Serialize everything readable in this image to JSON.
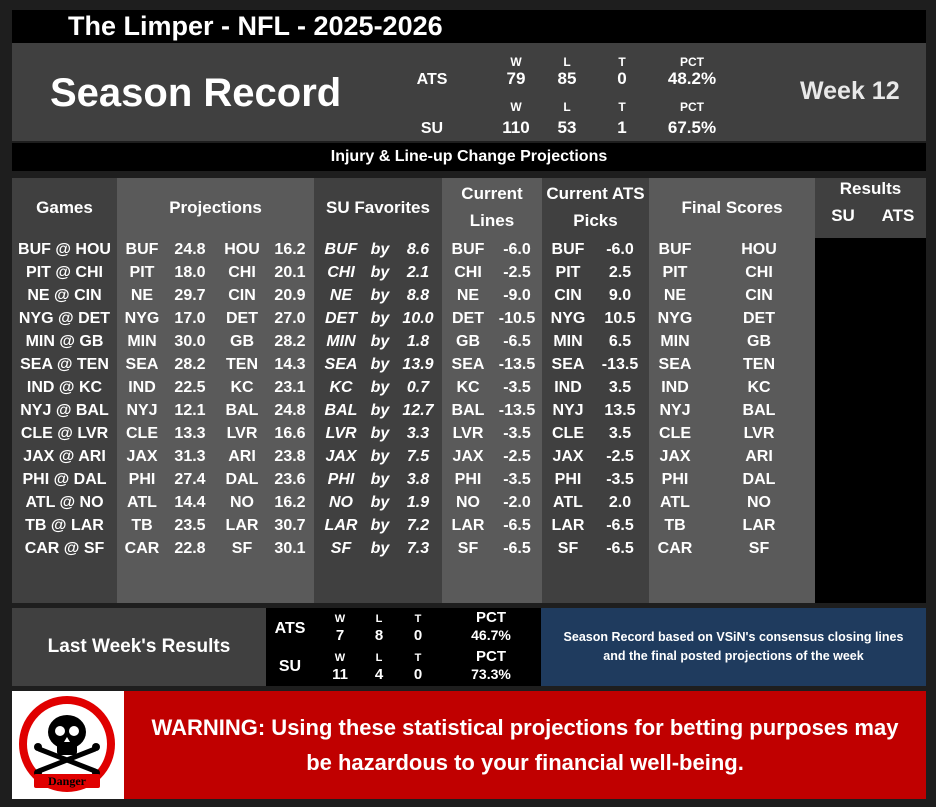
{
  "title": "The Limper - NFL - 2025-2026",
  "season": {
    "title": "Season Record",
    "week": "Week 12",
    "headers": {
      "w": "W",
      "l": "L",
      "t": "T",
      "pct": "PCT"
    },
    "ats": {
      "label": "ATS",
      "w": "79",
      "l": "85",
      "t": "0",
      "pct": "48.2%"
    },
    "su": {
      "label": "SU",
      "w": "110",
      "l": "53",
      "t": "1",
      "pct": "67.5%"
    }
  },
  "injury_banner": "Injury & Line-up Change Projections",
  "headers": {
    "games": "Games",
    "projections": "Projections",
    "su_favorites": "SU Favorites",
    "current_lines_1": "Current",
    "current_lines_2": "Lines",
    "ats_picks_1": "Current ATS",
    "ats_picks_2": "Picks",
    "final_scores": "Final Scores",
    "results": "Results",
    "results_su": "SU",
    "results_ats": "ATS"
  },
  "rows": [
    {
      "game": "BUF @ HOU",
      "a": "BUF",
      "as": "24.8",
      "h": "HOU",
      "hs": "16.2",
      "fav": "BUF",
      "by": "by",
      "m": "8.6",
      "lt": "BUF",
      "lv": "-6.0",
      "pt": "BUF",
      "pv": "-6.0",
      "fa": "BUF",
      "fh": "HOU"
    },
    {
      "game": "PIT @ CHI",
      "a": "PIT",
      "as": "18.0",
      "h": "CHI",
      "hs": "20.1",
      "fav": "CHI",
      "by": "by",
      "m": "2.1",
      "lt": "CHI",
      "lv": "-2.5",
      "pt": "PIT",
      "pv": "2.5",
      "fa": "PIT",
      "fh": "CHI"
    },
    {
      "game": "NE @ CIN",
      "a": "NE",
      "as": "29.7",
      "h": "CIN",
      "hs": "20.9",
      "fav": "NE",
      "by": "by",
      "m": "8.8",
      "lt": "NE",
      "lv": "-9.0",
      "pt": "CIN",
      "pv": "9.0",
      "fa": "NE",
      "fh": "CIN"
    },
    {
      "game": "NYG @ DET",
      "a": "NYG",
      "as": "17.0",
      "h": "DET",
      "hs": "27.0",
      "fav": "DET",
      "by": "by",
      "m": "10.0",
      "lt": "DET",
      "lv": "-10.5",
      "pt": "NYG",
      "pv": "10.5",
      "fa": "NYG",
      "fh": "DET"
    },
    {
      "game": "MIN @ GB",
      "a": "MIN",
      "as": "30.0",
      "h": "GB",
      "hs": "28.2",
      "fav": "MIN",
      "by": "by",
      "m": "1.8",
      "lt": "GB",
      "lv": "-6.5",
      "pt": "MIN",
      "pv": "6.5",
      "fa": "MIN",
      "fh": "GB"
    },
    {
      "game": "SEA @ TEN",
      "a": "SEA",
      "as": "28.2",
      "h": "TEN",
      "hs": "14.3",
      "fav": "SEA",
      "by": "by",
      "m": "13.9",
      "lt": "SEA",
      "lv": "-13.5",
      "pt": "SEA",
      "pv": "-13.5",
      "fa": "SEA",
      "fh": "TEN"
    },
    {
      "game": "IND @ KC",
      "a": "IND",
      "as": "22.5",
      "h": "KC",
      "hs": "23.1",
      "fav": "KC",
      "by": "by",
      "m": "0.7",
      "lt": "KC",
      "lv": "-3.5",
      "pt": "IND",
      "pv": "3.5",
      "fa": "IND",
      "fh": "KC"
    },
    {
      "game": "NYJ @ BAL",
      "a": "NYJ",
      "as": "12.1",
      "h": "BAL",
      "hs": "24.8",
      "fav": "BAL",
      "by": "by",
      "m": "12.7",
      "lt": "BAL",
      "lv": "-13.5",
      "pt": "NYJ",
      "pv": "13.5",
      "fa": "NYJ",
      "fh": "BAL"
    },
    {
      "game": "CLE @ LVR",
      "a": "CLE",
      "as": "13.3",
      "h": "LVR",
      "hs": "16.6",
      "fav": "LVR",
      "by": "by",
      "m": "3.3",
      "lt": "LVR",
      "lv": "-3.5",
      "pt": "CLE",
      "pv": "3.5",
      "fa": "CLE",
      "fh": "LVR"
    },
    {
      "game": "JAX @ ARI",
      "a": "JAX",
      "as": "31.3",
      "h": "ARI",
      "hs": "23.8",
      "fav": "JAX",
      "by": "by",
      "m": "7.5",
      "lt": "JAX",
      "lv": "-2.5",
      "pt": "JAX",
      "pv": "-2.5",
      "fa": "JAX",
      "fh": "ARI"
    },
    {
      "game": "PHI @ DAL",
      "a": "PHI",
      "as": "27.4",
      "h": "DAL",
      "hs": "23.6",
      "fav": "PHI",
      "by": "by",
      "m": "3.8",
      "lt": "PHI",
      "lv": "-3.5",
      "pt": "PHI",
      "pv": "-3.5",
      "fa": "PHI",
      "fh": "DAL"
    },
    {
      "game": "ATL @ NO",
      "a": "ATL",
      "as": "14.4",
      "h": "NO",
      "hs": "16.2",
      "fav": "NO",
      "by": "by",
      "m": "1.9",
      "lt": "NO",
      "lv": "-2.0",
      "pt": "ATL",
      "pv": "2.0",
      "fa": "ATL",
      "fh": "NO"
    },
    {
      "game": "TB @ LAR",
      "a": "TB",
      "as": "23.5",
      "h": "LAR",
      "hs": "30.7",
      "fav": "LAR",
      "by": "by",
      "m": "7.2",
      "lt": "LAR",
      "lv": "-6.5",
      "pt": "LAR",
      "pv": "-6.5",
      "fa": "TB",
      "fh": "LAR"
    },
    {
      "game": "CAR @ SF",
      "a": "CAR",
      "as": "22.8",
      "h": "SF",
      "hs": "30.1",
      "fav": "SF",
      "by": "by",
      "m": "7.3",
      "lt": "SF",
      "lv": "-6.5",
      "pt": "SF",
      "pv": "-6.5",
      "fa": "CAR",
      "fh": "SF"
    }
  ],
  "last_week": {
    "label": "Last Week's Results",
    "headers": {
      "w": "W",
      "l": "L",
      "t": "T",
      "pct": "PCT"
    },
    "ats": {
      "label": "ATS",
      "w": "7",
      "l": "8",
      "t": "0",
      "pct": "46.7%"
    },
    "su": {
      "label": "SU",
      "w": "11",
      "l": "4",
      "t": "0",
      "pct": "73.3%"
    }
  },
  "note": "Season Record based on VSiN's consensus closing lines and the final posted projections of the week",
  "warning": "WARNING: Using these statistical projections for betting purposes may be hazardous to your financial well-being.",
  "danger_label": "Danger",
  "colors": {
    "dark": "#404040",
    "mid": "#5a5a5a",
    "warning": "#c00000",
    "note": "#1f3b5e"
  }
}
